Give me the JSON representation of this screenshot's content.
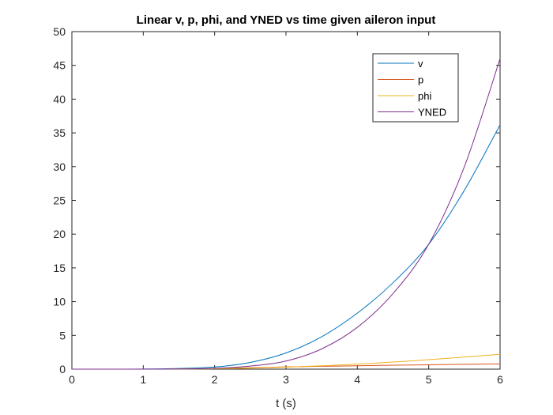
{
  "chart_data": {
    "type": "line",
    "title": "Linear v, p, phi, and YNED vs time given aileron input",
    "xlabel": "t (s)",
    "ylabel": "",
    "xlim": [
      0,
      6
    ],
    "ylim": [
      0,
      50
    ],
    "xticks": [
      0,
      1,
      2,
      3,
      4,
      5,
      6
    ],
    "yticks": [
      0,
      5,
      10,
      15,
      20,
      25,
      30,
      35,
      40,
      45,
      50
    ],
    "grid": false,
    "legend_position": "top-right",
    "x": [
      0,
      0.5,
      1,
      1.5,
      2,
      2.5,
      3,
      3.5,
      4,
      4.5,
      5,
      5.5,
      6
    ],
    "series": [
      {
        "name": "v",
        "color": "#0072BD",
        "values": [
          0,
          0,
          0.02,
          0.1,
          0.32,
          1.0,
          2.4,
          4.8,
          8.3,
          12.8,
          18.5,
          26.5,
          36.2
        ]
      },
      {
        "name": "p",
        "color": "#D95319",
        "values": [
          0,
          0,
          0,
          0.02,
          0.1,
          0.2,
          0.33,
          0.42,
          0.5,
          0.58,
          0.65,
          0.72,
          0.78
        ]
      },
      {
        "name": "phi",
        "color": "#EDB120",
        "values": [
          0,
          0,
          0,
          0.01,
          0.06,
          0.15,
          0.3,
          0.5,
          0.75,
          1.05,
          1.4,
          1.8,
          2.2
        ]
      },
      {
        "name": "YNED",
        "color": "#7E2F8E",
        "values": [
          0,
          0,
          0,
          0.02,
          0.12,
          0.45,
          1.2,
          3.0,
          6.2,
          11.2,
          18.5,
          30.0,
          46.0
        ]
      }
    ]
  }
}
